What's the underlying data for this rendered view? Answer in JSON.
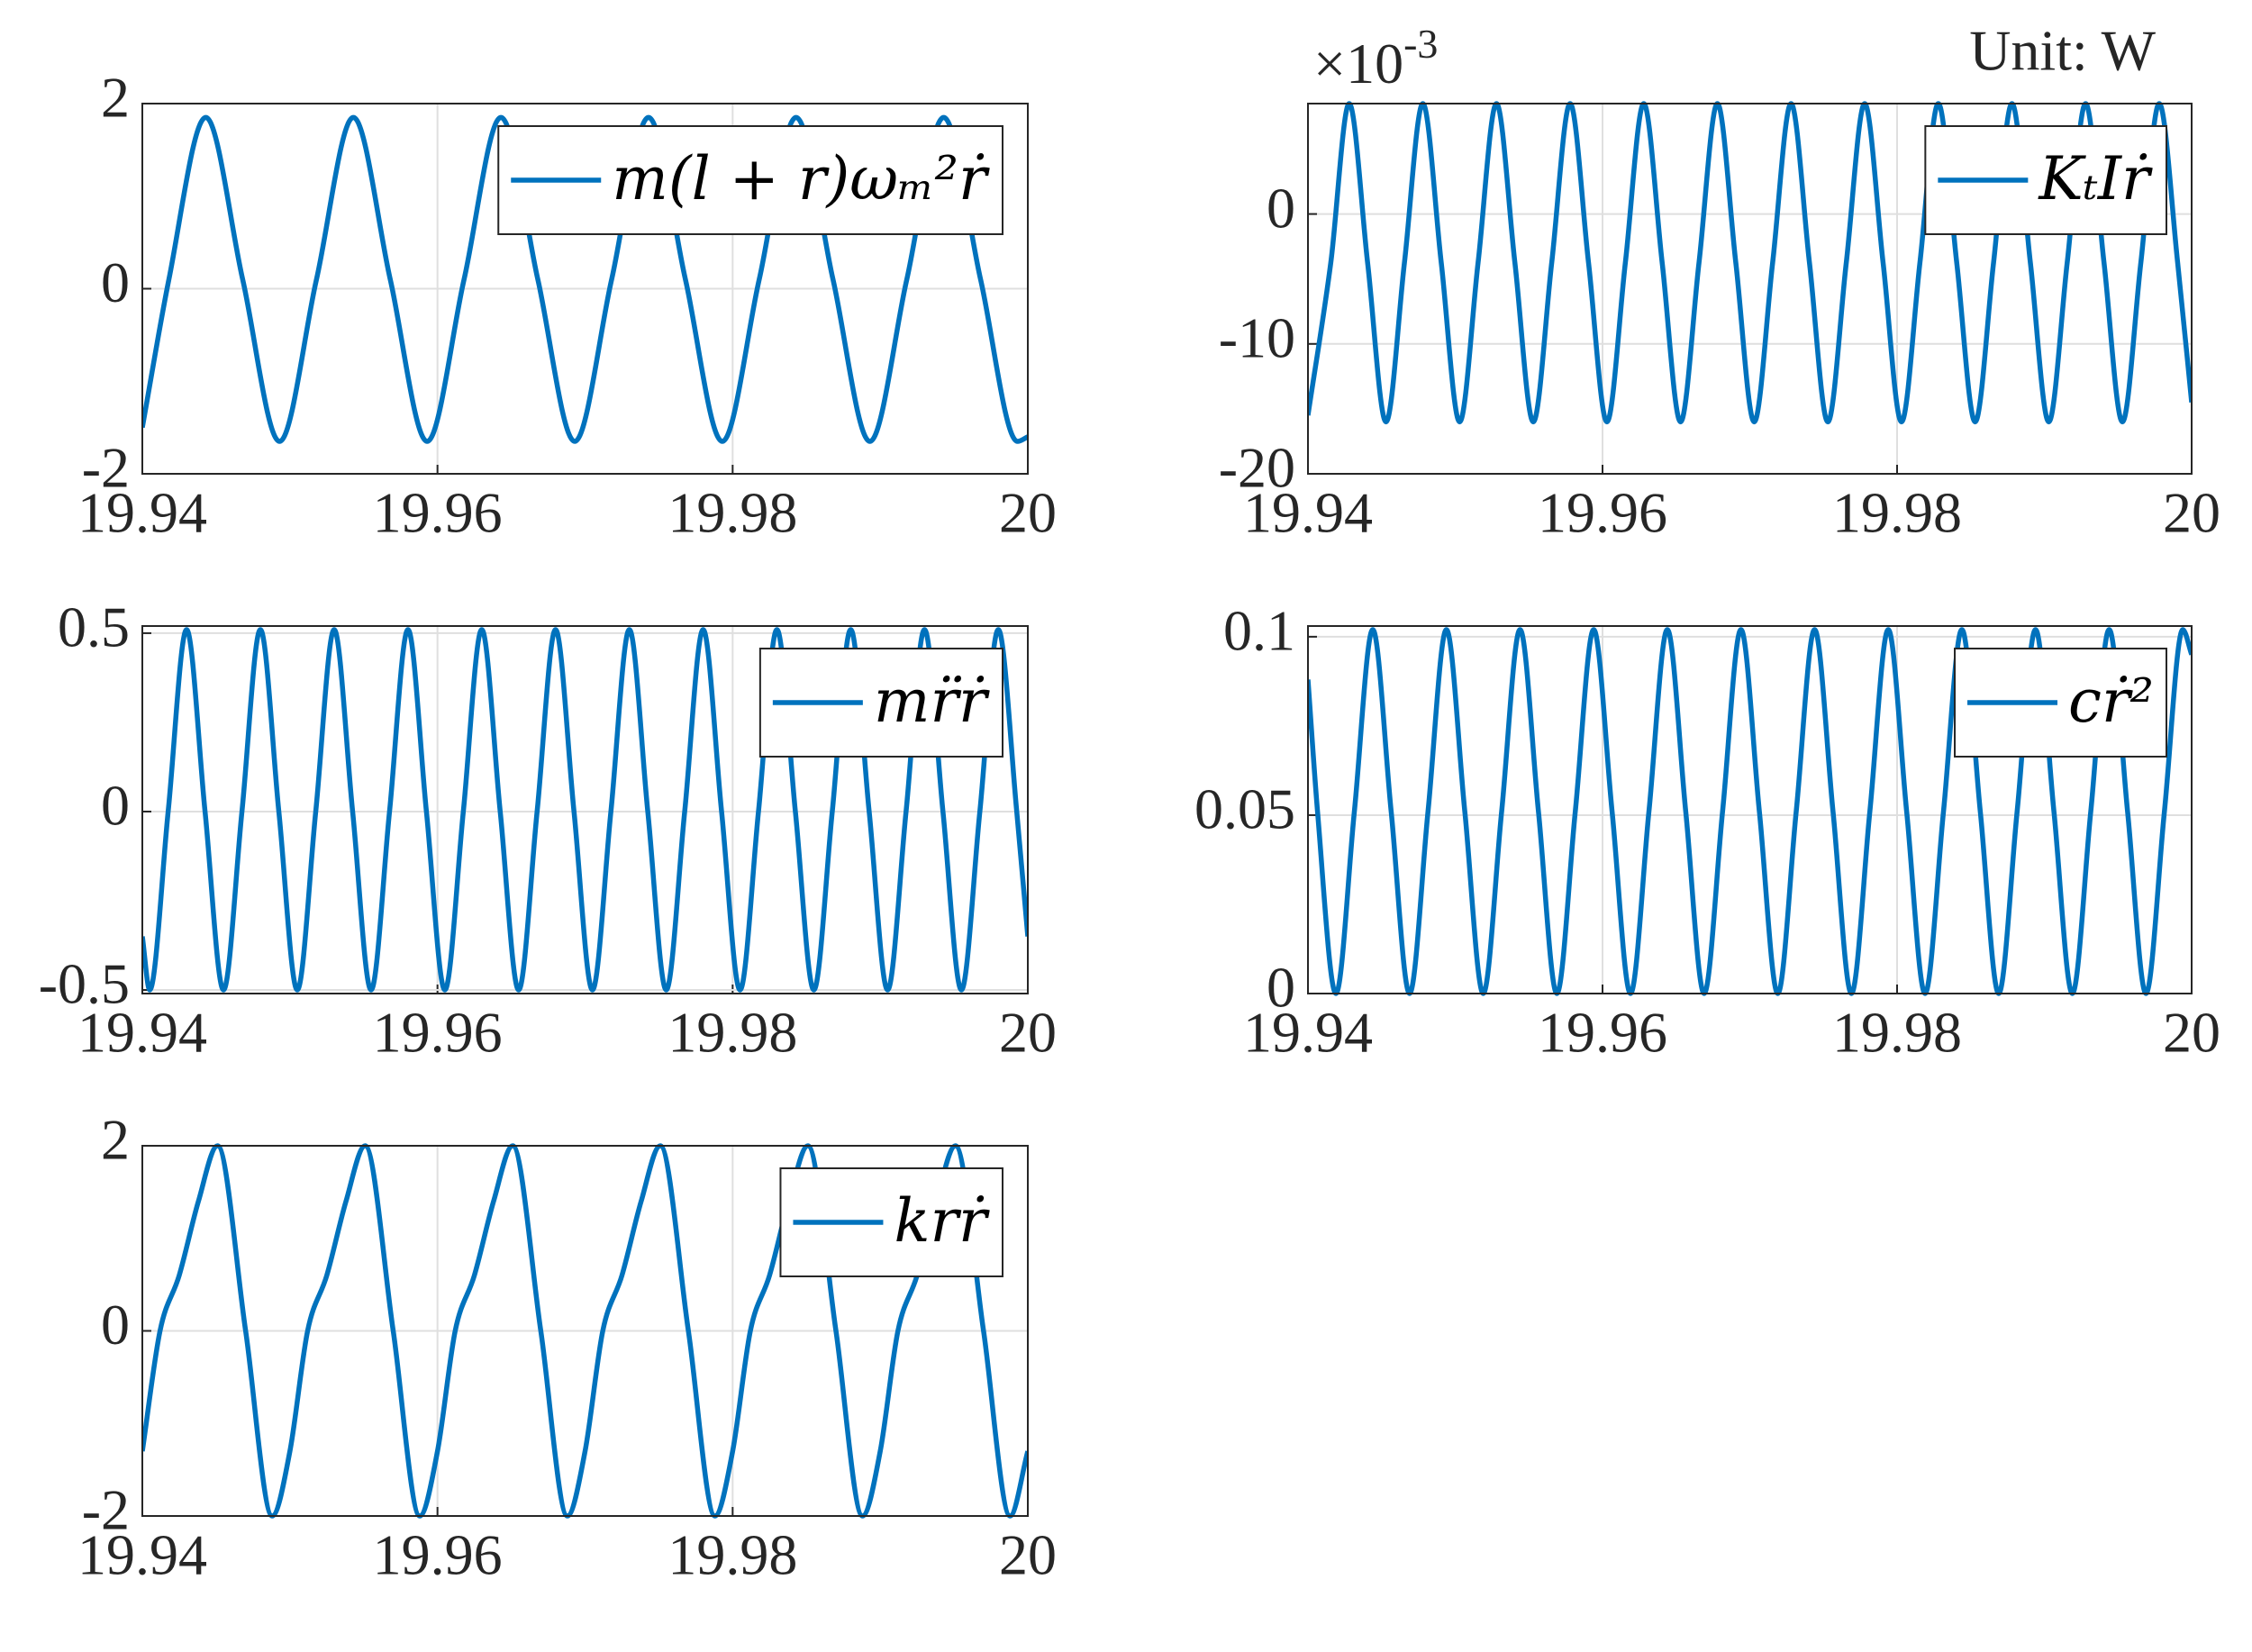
{
  "chart_data": [
    {
      "type": "line",
      "xlim": [
        19.94,
        20
      ],
      "ylim": [
        -2,
        2
      ],
      "xticks": [
        19.94,
        19.96,
        19.98,
        20
      ],
      "yticks": [
        -2,
        0,
        2
      ],
      "grid": true,
      "x": [
        19.94,
        19.9418,
        19.9443,
        19.9468,
        19.9493,
        19.9518,
        19.9543,
        19.9568,
        19.9593,
        19.9618,
        19.9643,
        19.9668,
        19.9693,
        19.9718,
        19.9743,
        19.9768,
        19.9793,
        19.9818,
        19.9843,
        19.9868,
        19.9893,
        19.9918,
        19.9943,
        19.9968,
        19.9993,
        20
      ],
      "series": [
        {
          "name": "m(l + r)ωₘ²ṙ",
          "color": "#0072bd",
          "values": [
            -1.5,
            0.1,
            1.85,
            0.1,
            -1.65,
            0.1,
            1.85,
            0.1,
            -1.65,
            0.1,
            1.85,
            0.1,
            -1.65,
            0.1,
            1.85,
            0.1,
            -1.65,
            0.1,
            1.85,
            0.1,
            -1.65,
            0.1,
            1.85,
            0.1,
            -1.65,
            -1.6
          ]
        }
      ]
    },
    {
      "type": "line",
      "xlim": [
        19.94,
        20
      ],
      "ylim": [
        -20,
        8.5
      ],
      "xticks": [
        19.94,
        19.96,
        19.98,
        20
      ],
      "yticks": [
        -20,
        -10,
        0
      ],
      "grid": true,
      "multiplier": "×10",
      "exponent": "-3",
      "note": "Unit: W",
      "x": [
        19.94,
        19.94155,
        19.9428,
        19.94405,
        19.9453,
        19.94655,
        19.9478,
        19.94905,
        19.9503,
        19.95155,
        19.9528,
        19.95405,
        19.9553,
        19.95655,
        19.9578,
        19.95905,
        19.9603,
        19.96155,
        19.9628,
        19.96405,
        19.9653,
        19.96655,
        19.9678,
        19.96905,
        19.9703,
        19.97155,
        19.9728,
        19.97405,
        19.9753,
        19.97655,
        19.9778,
        19.97905,
        19.9803,
        19.98155,
        19.9828,
        19.98405,
        19.9853,
        19.98655,
        19.9878,
        19.98905,
        19.9903,
        19.99155,
        19.9928,
        19.99405,
        19.9953,
        19.99655,
        19.9978,
        19.99905,
        20
      ],
      "series": [
        {
          "name": "KₜIṙ",
          "color": "#0072bd",
          "values": [
            -15.5,
            -3.75,
            8.5,
            -3.75,
            -16,
            -3.75,
            8.5,
            -3.75,
            -16,
            -3.75,
            8.5,
            -3.75,
            -16,
            -3.75,
            8.5,
            -3.75,
            -16,
            -3.75,
            8.5,
            -3.75,
            -16,
            -3.75,
            8.5,
            -3.75,
            -16,
            -3.75,
            8.5,
            -3.75,
            -16,
            -3.75,
            8.5,
            -3.75,
            -16,
            -3.75,
            8.5,
            -3.75,
            -16,
            -3.75,
            8.5,
            -3.75,
            -16,
            -3.75,
            8.5,
            -3.75,
            -16,
            -3.75,
            8.5,
            -3.75,
            -14.5
          ]
        }
      ]
    },
    {
      "type": "line",
      "xlim": [
        19.94,
        20
      ],
      "ylim": [
        -0.51,
        0.52
      ],
      "xticks": [
        19.94,
        19.96,
        19.98,
        20
      ],
      "yticks": [
        -0.5,
        0,
        0.5
      ],
      "grid": true,
      "x": [
        19.94,
        19.9405,
        19.94175,
        19.943,
        19.94425,
        19.9455,
        19.94675,
        19.948,
        19.94925,
        19.9505,
        19.95175,
        19.953,
        19.95425,
        19.9555,
        19.95675,
        19.958,
        19.95925,
        19.9605,
        19.96175,
        19.963,
        19.96425,
        19.9655,
        19.96675,
        19.968,
        19.96925,
        19.9705,
        19.97175,
        19.973,
        19.97425,
        19.9755,
        19.97675,
        19.978,
        19.97925,
        19.9805,
        19.98175,
        19.983,
        19.98425,
        19.9855,
        19.98675,
        19.988,
        19.98925,
        19.9905,
        19.99175,
        19.993,
        19.99425,
        19.9955,
        19.99675,
        19.998,
        19.99925,
        20
      ],
      "series": [
        {
          "name": "mr̈ṙ",
          "color": "#0072bd",
          "values": [
            -0.35,
            -0.5,
            0,
            0.51,
            0,
            -0.5,
            0,
            0.51,
            0,
            -0.5,
            0,
            0.51,
            0,
            -0.5,
            0,
            0.51,
            0,
            -0.5,
            0,
            0.51,
            0,
            -0.5,
            0,
            0.51,
            0,
            -0.5,
            0,
            0.51,
            0,
            -0.5,
            0,
            0.51,
            0,
            -0.5,
            0,
            0.51,
            0,
            -0.5,
            0,
            0.51,
            0,
            -0.5,
            0,
            0.51,
            0,
            -0.5,
            0,
            0.51,
            0,
            -0.35
          ]
        }
      ]
    },
    {
      "type": "line",
      "xlim": [
        19.94,
        20
      ],
      "ylim": [
        0,
        0.103
      ],
      "xticks": [
        19.94,
        19.96,
        19.98,
        20
      ],
      "yticks": [
        0,
        0.05,
        0.1
      ],
      "grid": true,
      "x": [
        19.94,
        19.94065,
        19.9419,
        19.94315,
        19.9444,
        19.94565,
        19.9469,
        19.94815,
        19.9494,
        19.95065,
        19.9519,
        19.95315,
        19.9544,
        19.95565,
        19.9569,
        19.95815,
        19.9594,
        19.96065,
        19.9619,
        19.96315,
        19.9644,
        19.96565,
        19.9669,
        19.96815,
        19.9694,
        19.97065,
        19.9719,
        19.97315,
        19.9744,
        19.97565,
        19.9769,
        19.97815,
        19.9794,
        19.98065,
        19.9819,
        19.98315,
        19.9844,
        19.98565,
        19.9869,
        19.98815,
        19.9894,
        19.99065,
        19.9919,
        19.99315,
        19.9944,
        19.99565,
        19.9969,
        19.99815,
        19.9994,
        20
      ],
      "series": [
        {
          "name": "cṙ²",
          "color": "#0072bd",
          "values": [
            0.088,
            0.051,
            0,
            0.051,
            0.102,
            0.051,
            0,
            0.051,
            0.102,
            0.051,
            0,
            0.051,
            0.102,
            0.051,
            0,
            0.051,
            0.102,
            0.051,
            0,
            0.051,
            0.102,
            0.051,
            0,
            0.051,
            0.102,
            0.051,
            0,
            0.051,
            0.102,
            0.051,
            0,
            0.051,
            0.102,
            0.051,
            0,
            0.051,
            0.102,
            0.051,
            0,
            0.051,
            0.102,
            0.051,
            0,
            0.051,
            0.102,
            0.051,
            0,
            0.051,
            0.102,
            0.095
          ]
        }
      ]
    },
    {
      "type": "line",
      "xlim": [
        19.94,
        20
      ],
      "ylim": [
        -2,
        2
      ],
      "xticks": [
        19.94,
        19.96,
        19.98,
        20
      ],
      "yticks": [
        -2,
        0,
        2
      ],
      "grid": true,
      "x": [
        19.94,
        19.9412,
        19.9425,
        19.9438,
        19.9451,
        19.947,
        19.9488,
        19.95,
        19.9512,
        19.9525,
        19.9538,
        19.9551,
        19.957,
        19.9588,
        19.96,
        19.9612,
        19.9625,
        19.9638,
        19.9651,
        19.967,
        19.9688,
        19.97,
        19.9712,
        19.9725,
        19.9738,
        19.9751,
        19.977,
        19.9788,
        19.98,
        19.9812,
        19.9825,
        19.9838,
        19.9851,
        19.987,
        19.9888,
        19.99,
        19.9912,
        19.9925,
        19.9938,
        19.9951,
        19.997,
        19.9988,
        20
      ],
      "series": [
        {
          "name": "krṙ",
          "color": "#0072bd",
          "values": [
            -1.3,
            0,
            0.6,
            1.4,
            2,
            0,
            -2,
            -1.3,
            0,
            0.6,
            1.4,
            2,
            0,
            -2,
            -1.3,
            0,
            0.6,
            1.4,
            2,
            0,
            -2,
            -1.3,
            0,
            0.6,
            1.4,
            2,
            0,
            -2,
            -1.3,
            0,
            0.6,
            1.4,
            2,
            0,
            -2,
            -1.3,
            0,
            0.6,
            1.4,
            2,
            0,
            -2,
            -1.3
          ]
        }
      ]
    }
  ]
}
